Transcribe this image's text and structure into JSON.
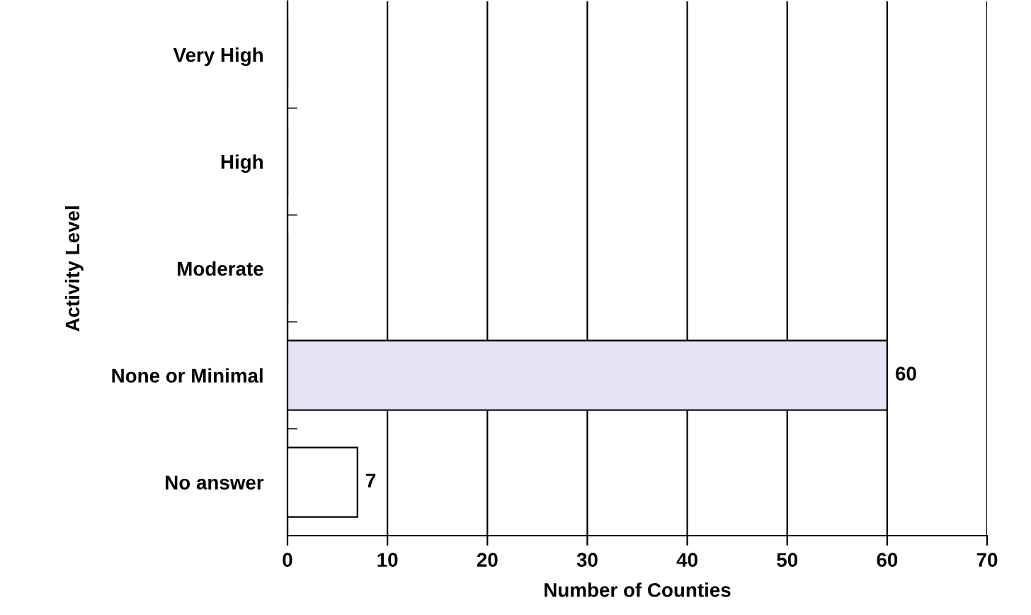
{
  "chart_data": {
    "type": "bar",
    "orientation": "horizontal",
    "xlabel": "Number of Counties",
    "ylabel": "Activity Level",
    "categories": [
      "Very High",
      "High",
      "Moderate",
      "None or Minimal",
      "No answer"
    ],
    "values": [
      0,
      0,
      0,
      60,
      7
    ],
    "value_labels": [
      null,
      null,
      null,
      "60",
      "7"
    ],
    "colors": [
      "#ffffff",
      "#ffffff",
      "#ffffff",
      "#e6e4f4",
      "#ffffff"
    ],
    "xlim": [
      0,
      70
    ],
    "xticks": [
      0,
      10,
      20,
      30,
      40,
      50,
      60,
      70
    ],
    "grid": "x"
  }
}
